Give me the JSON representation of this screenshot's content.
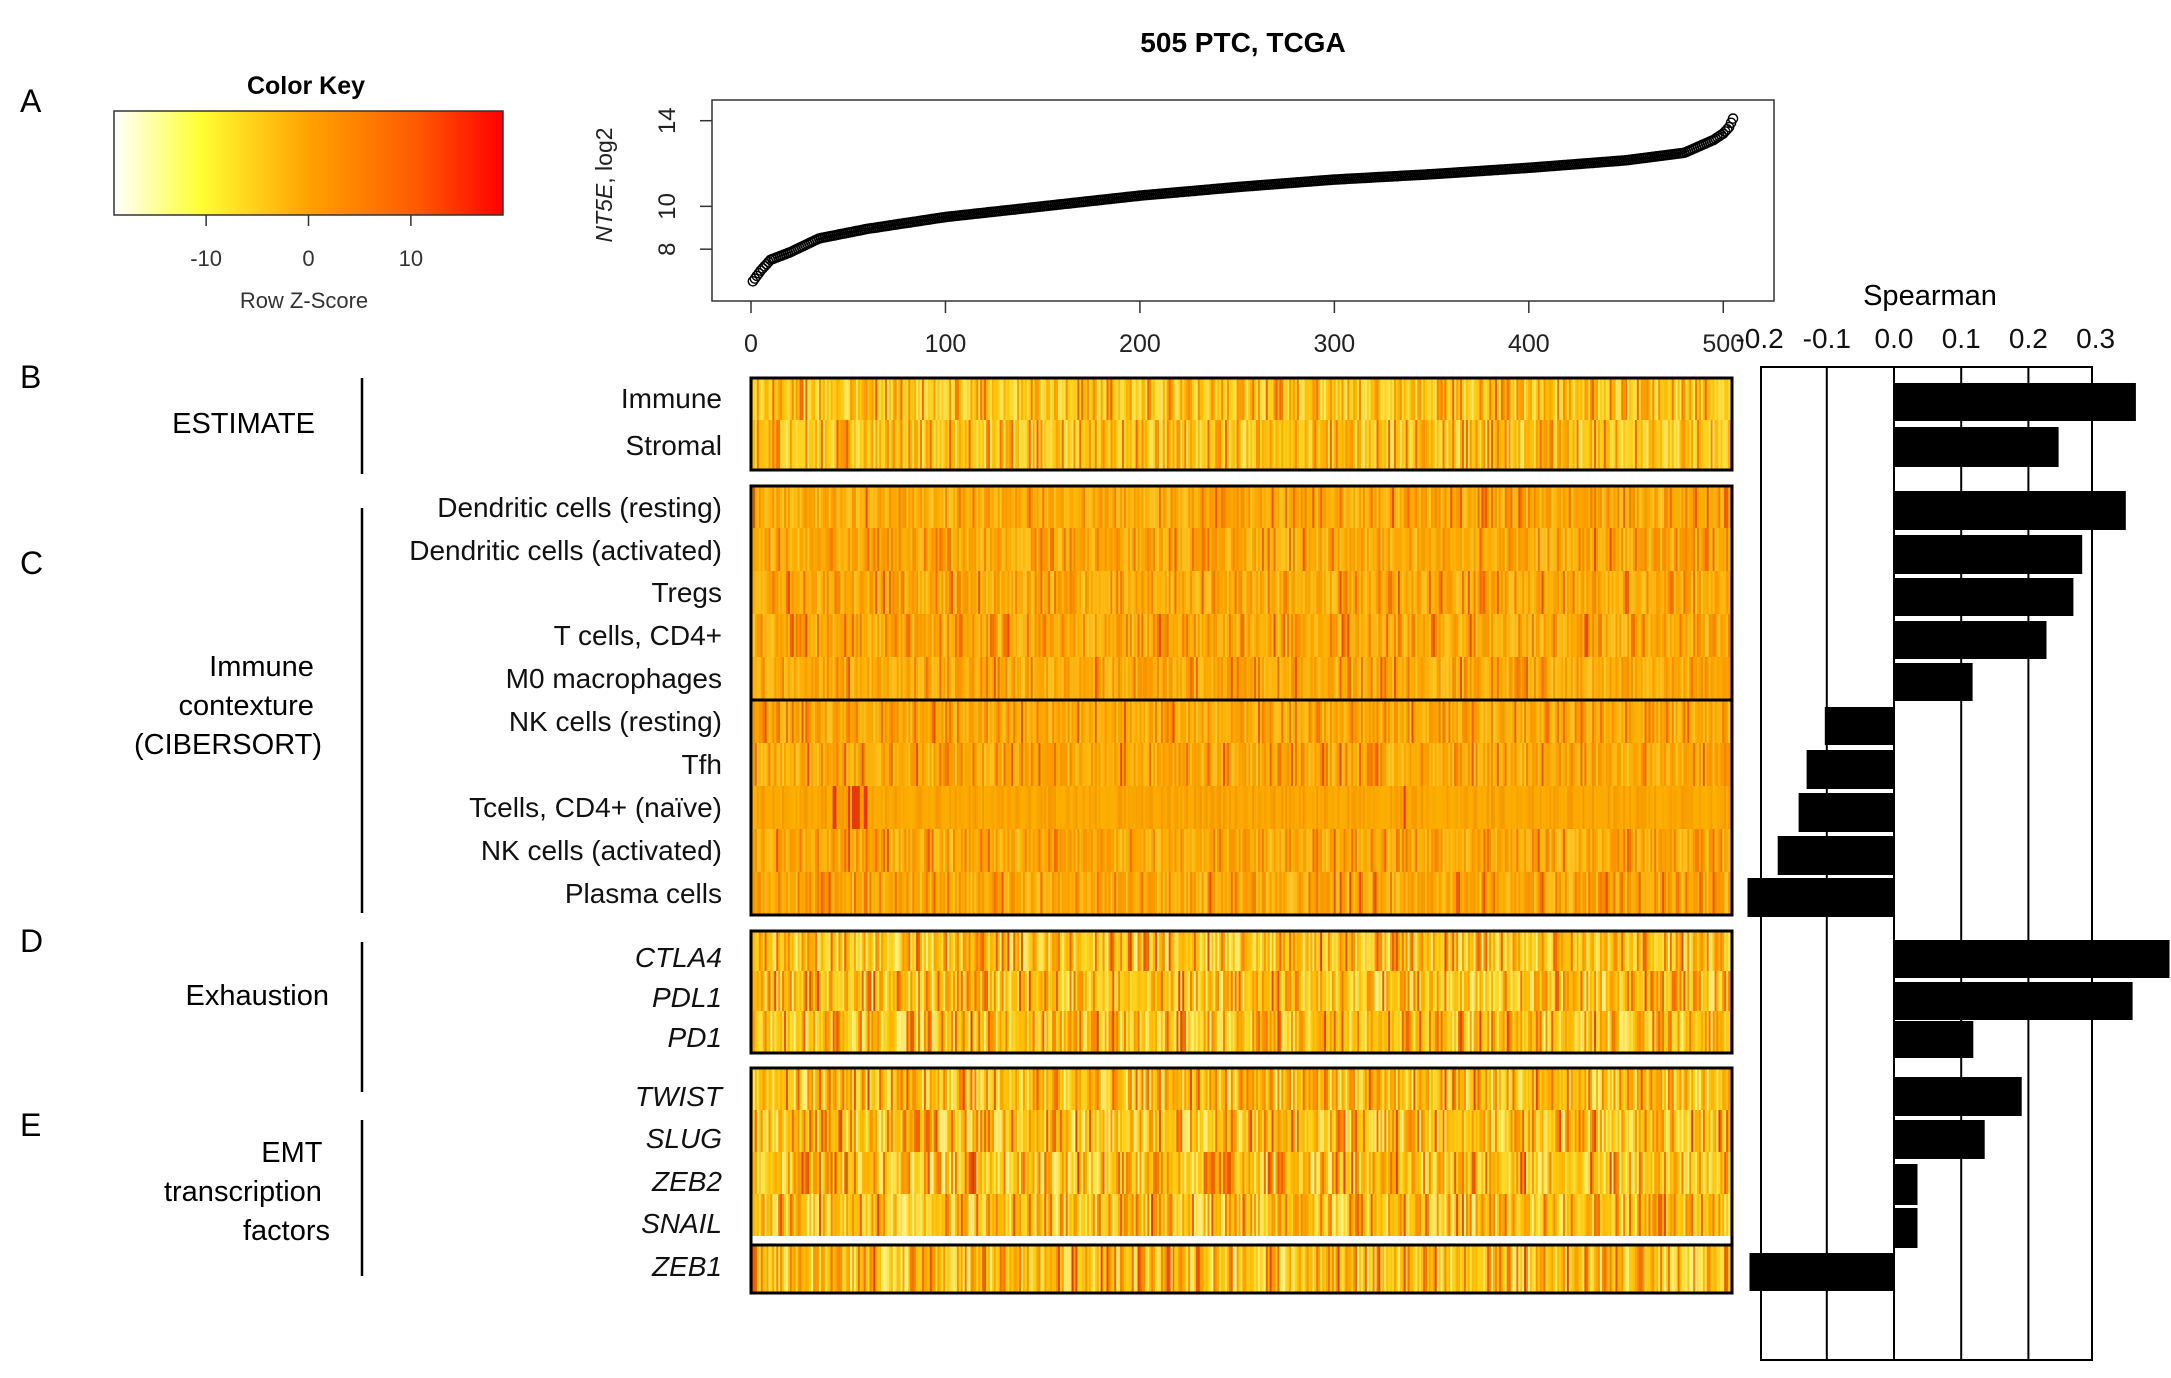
{
  "title": "505 PTC, TCGA",
  "panel_letters": [
    "A",
    "B",
    "C",
    "D",
    "E"
  ],
  "color_key": {
    "title": "Color Key",
    "xlabel": "Row Z-Score",
    "ticks": [
      -10,
      0,
      10
    ],
    "tick_labels": [
      "-10",
      "0",
      "10"
    ],
    "range": [
      -19,
      19
    ],
    "colors": [
      "#ffffff",
      "#ffff00",
      "#ff8c00",
      "#ff0000"
    ]
  },
  "groups": [
    {
      "label_lines": [
        "ESTIMATE"
      ]
    },
    {
      "label_lines": [
        "Immune",
        "contexture",
        "(CIBERSORT)"
      ]
    },
    {
      "label_lines": [
        "Exhaustion"
      ]
    },
    {
      "label_lines": [
        "EMT",
        "transcription",
        "factors"
      ]
    }
  ],
  "chart_data": [
    {
      "type": "scatter",
      "description_source": "panel A: NT5E expression of 505 samples sorted ascending",
      "ylabel_gene": "NT5E",
      "ylabel_unit": ", log2",
      "x_range": [
        0,
        505
      ],
      "ylim": [
        6.0,
        14.5
      ],
      "x_ticks": [
        0,
        100,
        200,
        300,
        400,
        500
      ],
      "x_tick_labels": [
        "0",
        "100",
        "200",
        "300",
        "400",
        "500"
      ],
      "y_ticks": [
        8,
        10,
        14
      ],
      "y_tick_labels": [
        "8",
        "10",
        "14"
      ],
      "n": 505,
      "curve_knots": [
        [
          1,
          6.5
        ],
        [
          5,
          7.0
        ],
        [
          10,
          7.5
        ],
        [
          20,
          7.85
        ],
        [
          35,
          8.5
        ],
        [
          60,
          8.95
        ],
        [
          100,
          9.5
        ],
        [
          150,
          10.0
        ],
        [
          200,
          10.5
        ],
        [
          250,
          10.9
        ],
        [
          300,
          11.25
        ],
        [
          350,
          11.5
        ],
        [
          400,
          11.8
        ],
        [
          450,
          12.15
        ],
        [
          480,
          12.5
        ],
        [
          495,
          13.1
        ],
        [
          500,
          13.4
        ],
        [
          503,
          13.7
        ],
        [
          505,
          14.1
        ]
      ]
    },
    {
      "type": "heatmap",
      "description_source": "panels B-E: per-sample row Z-scores (505 columns, sorted by NT5E)",
      "columns": 505,
      "rows": [
        {
          "label": "Immune",
          "italic": false,
          "style": "estimate"
        },
        {
          "label": "Stromal",
          "italic": false,
          "style": "estimate"
        },
        {
          "label": "Dendritic cells (resting)",
          "italic": false,
          "style": "cibersort"
        },
        {
          "label": "Dendritic cells (activated)",
          "italic": false,
          "style": "cibersort"
        },
        {
          "label": "Tregs",
          "italic": false,
          "style": "cibersort"
        },
        {
          "label": "T cells, CD4+",
          "italic": false,
          "style": "cibersort"
        },
        {
          "label": "M0 macrophages",
          "italic": false,
          "style": "cibersort"
        },
        {
          "label": "NK cells (resting)",
          "italic": false,
          "style": "cibersort"
        },
        {
          "label": "Tfh",
          "italic": false,
          "style": "cibersort"
        },
        {
          "label": "Tcells, CD4+ (naïve)",
          "italic": false,
          "style": "naive"
        },
        {
          "label": "NK cells (activated)",
          "italic": false,
          "style": "cibersort"
        },
        {
          "label": "Plasma cells",
          "italic": false,
          "style": "cibersort"
        },
        {
          "label": "CTLA4",
          "italic": true,
          "style": "gene"
        },
        {
          "label": "PDL1",
          "italic": true,
          "style": "gene"
        },
        {
          "label": "PD1",
          "italic": true,
          "style": "gene"
        },
        {
          "label": "TWIST",
          "italic": true,
          "style": "gene"
        },
        {
          "label": "SLUG",
          "italic": true,
          "style": "gene"
        },
        {
          "label": "ZEB2",
          "italic": true,
          "style": "gene"
        },
        {
          "label": "SNAIL",
          "italic": true,
          "style": "gene"
        },
        {
          "label": "ZEB1",
          "italic": true,
          "style": "gene"
        }
      ]
    },
    {
      "type": "bar",
      "orientation": "horizontal",
      "title": "Spearman",
      "xlim": [
        -0.22,
        0.42
      ],
      "x_ticks": [
        -0.2,
        -0.1,
        0.0,
        0.1,
        0.2,
        0.3
      ],
      "x_tick_labels": [
        "-0.2",
        "-0.1",
        "0.0",
        "0.1",
        "0.2",
        "0.3"
      ],
      "categories": [
        "Immune",
        "Stromal",
        "Dendritic cells (resting)",
        "Dendritic cells (activated)",
        "Tregs",
        "T cells, CD4+",
        "M0 macrophages",
        "NK cells (resting)",
        "Tfh",
        "Tcells, CD4+ (naïve)",
        "NK cells (activated)",
        "Plasma cells",
        "CTLA4",
        "PDL1",
        "PD1",
        "TWIST",
        "SLUG",
        "ZEB2",
        "SNAIL",
        "ZEB1"
      ],
      "values": [
        0.36,
        0.245,
        0.345,
        0.28,
        0.267,
        0.227,
        0.117,
        -0.103,
        -0.13,
        -0.142,
        -0.173,
        -0.218,
        0.41,
        0.355,
        0.118,
        0.19,
        0.135,
        0.035,
        0.035,
        -0.215
      ]
    }
  ]
}
